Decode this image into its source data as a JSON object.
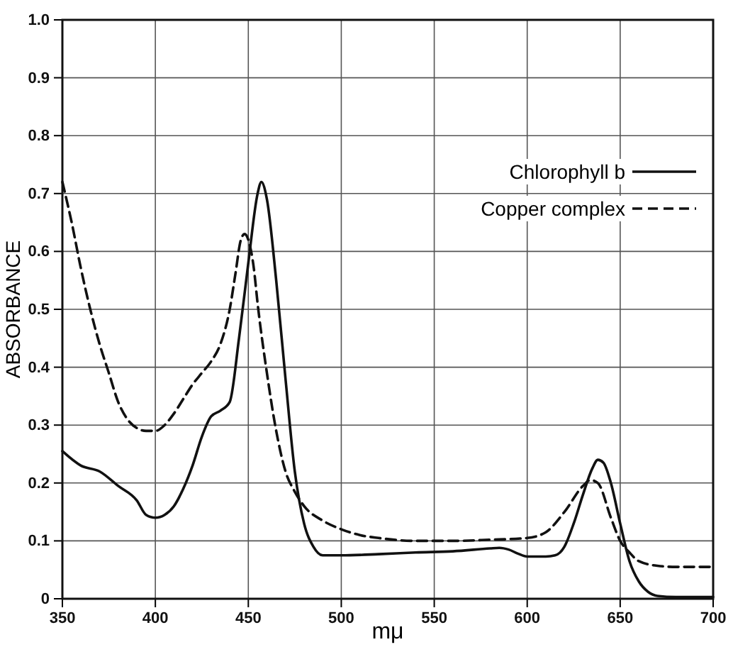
{
  "chart_data": {
    "type": "line",
    "xlabel": "mμ",
    "ylabel": "ABSORBANCE",
    "xlim": [
      350,
      700
    ],
    "ylim": [
      0,
      1
    ],
    "xticks": [
      350,
      400,
      450,
      500,
      550,
      600,
      650,
      700
    ],
    "yticks": [
      0,
      0.1,
      0.2,
      0.3,
      0.4,
      0.5,
      0.6,
      0.7,
      0.8,
      0.9,
      {
        "value": 1,
        "label": "1.0"
      }
    ],
    "grid": true,
    "legend": "top right",
    "marker": "none",
    "series": [
      {
        "name": "Chlorophyll b",
        "color": "#111111",
        "line_style": "solid",
        "x": [
          350,
          360,
          370,
          380,
          390,
          395,
          400,
          405,
          410,
          415,
          420,
          425,
          430,
          435,
          440,
          445,
          450,
          455,
          457,
          460,
          465,
          470,
          475,
          480,
          485,
          490,
          500,
          520,
          540,
          560,
          580,
          585,
          590,
          595,
          600,
          610,
          615,
          620,
          625,
          630,
          635,
          638,
          641,
          645,
          650,
          655,
          660,
          665,
          670,
          680,
          700
        ],
        "values": [
          0.255,
          0.23,
          0.22,
          0.195,
          0.17,
          0.145,
          0.14,
          0.145,
          0.16,
          0.19,
          0.23,
          0.28,
          0.315,
          0.325,
          0.34,
          0.45,
          0.58,
          0.7,
          0.72,
          0.69,
          0.55,
          0.38,
          0.22,
          0.13,
          0.09,
          0.075,
          0.075,
          0.077,
          0.08,
          0.082,
          0.087,
          0.088,
          0.085,
          0.078,
          0.073,
          0.073,
          0.075,
          0.09,
          0.13,
          0.18,
          0.225,
          0.24,
          0.235,
          0.2,
          0.13,
          0.065,
          0.03,
          0.012,
          0.005,
          0.003,
          0.003
        ]
      },
      {
        "name": "Copper complex",
        "color": "#111111",
        "line_style": "dashed",
        "x": [
          350,
          355,
          360,
          365,
          370,
          375,
          380,
          385,
          390,
          395,
          400,
          405,
          410,
          415,
          420,
          425,
          430,
          435,
          440,
          443,
          446,
          448,
          450,
          453,
          455,
          460,
          465,
          470,
          475,
          480,
          490,
          500,
          510,
          520,
          540,
          560,
          580,
          600,
          610,
          620,
          630,
          634,
          638,
          645,
          650,
          655,
          660,
          670,
          680,
          700
        ],
        "values": [
          0.72,
          0.65,
          0.57,
          0.5,
          0.44,
          0.39,
          0.34,
          0.31,
          0.295,
          0.29,
          0.29,
          0.3,
          0.32,
          0.345,
          0.37,
          0.39,
          0.41,
          0.44,
          0.5,
          0.56,
          0.62,
          0.63,
          0.62,
          0.57,
          0.51,
          0.39,
          0.29,
          0.22,
          0.185,
          0.16,
          0.135,
          0.12,
          0.11,
          0.105,
          0.1,
          0.1,
          0.102,
          0.105,
          0.115,
          0.15,
          0.195,
          0.205,
          0.2,
          0.14,
          0.1,
          0.08,
          0.065,
          0.057,
          0.055,
          0.055
        ]
      }
    ]
  }
}
